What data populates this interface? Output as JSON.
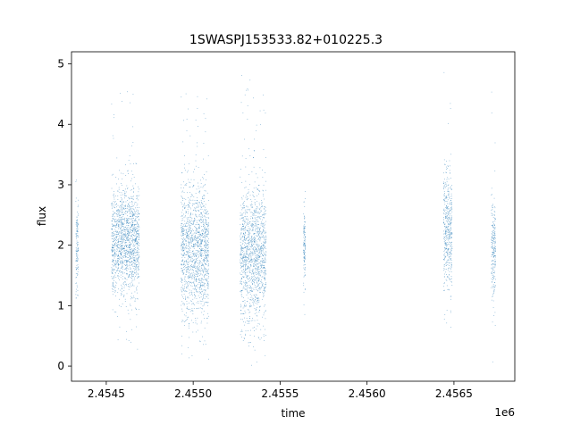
{
  "chart_data": {
    "type": "scatter",
    "title": "1SWASPJ153533.82+010225.3",
    "xlabel": "time",
    "ylabel": "flux",
    "x_offset_label": "1e6",
    "xlim": [
      2454300,
      2456850
    ],
    "ylim": [
      -0.25,
      5.2
    ],
    "x_ticks": [
      2454500,
      2455000,
      2455500,
      2456000,
      2456500
    ],
    "x_tick_labels": [
      "2.4545",
      "2.4550",
      "2.4555",
      "2.4560",
      "2.4565"
    ],
    "y_ticks": [
      0,
      1,
      2,
      3,
      4,
      5
    ],
    "y_tick_labels": [
      "0",
      "1",
      "2",
      "3",
      "4",
      "5"
    ],
    "grid": false,
    "marker_color": "#1f77b4",
    "clusters": [
      {
        "x_range": [
          2454325,
          2454340
        ],
        "flux_center": 2.0,
        "flux_spread": 0.45,
        "flux_min": 1.1,
        "flux_max": 3.1
      },
      {
        "x_range": [
          2454530,
          2454690
        ],
        "flux_center": 2.05,
        "flux_spread": 0.45,
        "flux_min": 0.0,
        "flux_max": 4.8
      },
      {
        "x_range": [
          2454930,
          2455090
        ],
        "flux_center": 1.9,
        "flux_spread": 0.55,
        "flux_min": 0.05,
        "flux_max": 4.6
      },
      {
        "x_range": [
          2455270,
          2455420
        ],
        "flux_center": 1.85,
        "flux_spread": 0.55,
        "flux_min": 0.0,
        "flux_max": 4.9
      },
      {
        "x_range": [
          2455635,
          2455645
        ],
        "flux_center": 2.05,
        "flux_spread": 0.35,
        "flux_min": 0.85,
        "flux_max": 3.4
      },
      {
        "x_range": [
          2456440,
          2456490
        ],
        "flux_center": 2.25,
        "flux_spread": 0.5,
        "flux_min": 0.45,
        "flux_max": 4.9
      },
      {
        "x_range": [
          2456715,
          2456740
        ],
        "flux_center": 1.95,
        "flux_spread": 0.45,
        "flux_min": 0.05,
        "flux_max": 4.9
      }
    ]
  }
}
